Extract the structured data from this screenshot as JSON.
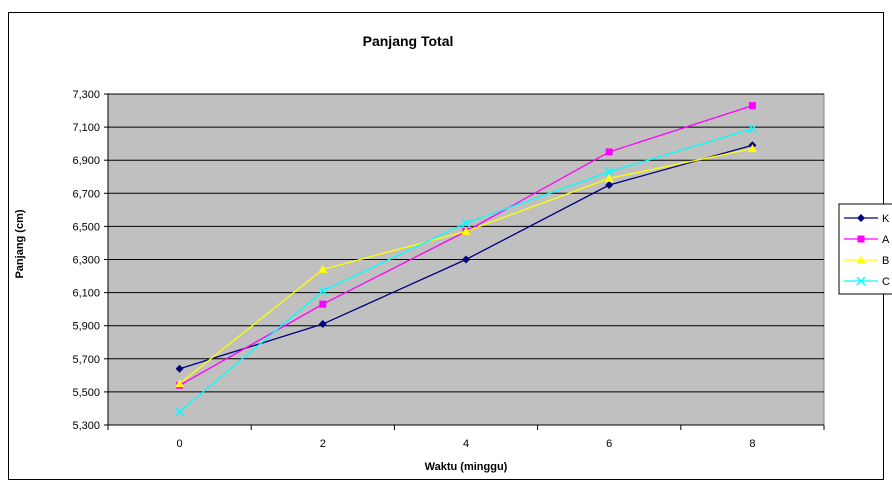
{
  "chart_data": {
    "type": "line",
    "title": "Panjang Total",
    "xlabel": "Waktu (minggu)",
    "ylabel": "Panjang (cm)",
    "x": [
      0,
      2,
      4,
      6,
      8
    ],
    "ylim": [
      5.3,
      7.3
    ],
    "yticks": [
      "5,300",
      "5,500",
      "5,700",
      "5,900",
      "6,100",
      "6,300",
      "6,500",
      "6,700",
      "6,900",
      "7,100",
      "7,300"
    ],
    "xticks": [
      "0",
      "2",
      "4",
      "6",
      "8"
    ],
    "grid": "horizontal",
    "plot_background": "#c0c0c0",
    "legend_position": "right",
    "series": [
      {
        "name": "K",
        "color": "#000080",
        "marker": "diamond",
        "values": [
          5.64,
          5.91,
          6.3,
          6.75,
          6.99
        ]
      },
      {
        "name": "A",
        "color": "#ff00ff",
        "marker": "square",
        "values": [
          5.54,
          6.03,
          6.47,
          6.95,
          7.23
        ]
      },
      {
        "name": "B",
        "color": "#ffff00",
        "marker": "triangle",
        "values": [
          5.55,
          6.24,
          6.47,
          6.79,
          6.97
        ]
      },
      {
        "name": "C",
        "color": "#00ffff",
        "marker": "x",
        "values": [
          5.38,
          6.11,
          6.52,
          6.83,
          7.09
        ]
      }
    ]
  }
}
